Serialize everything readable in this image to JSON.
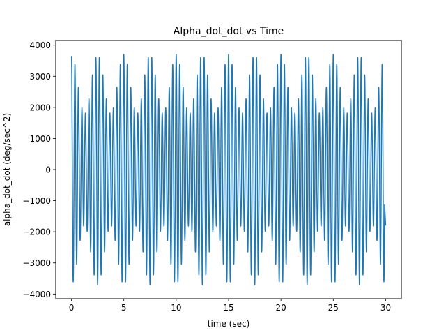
{
  "chart_data": {
    "type": "line",
    "title": "Alpha_dot_dot vs Time",
    "xlabel": "time (sec)",
    "ylabel": "alpha_dot_dot (deg/sec^2)",
    "xlim": [
      -1.5,
      31.5
    ],
    "ylim": [
      -4150,
      4150
    ],
    "xticks": [
      0,
      5,
      10,
      15,
      20,
      25,
      30
    ],
    "xtick_labels": [
      "0",
      "5",
      "10",
      "15",
      "20",
      "25",
      "30"
    ],
    "yticks": [
      -4000,
      -3000,
      -2000,
      -1000,
      0,
      1000,
      2000,
      3000,
      4000
    ],
    "ytick_labels": [
      "−4000",
      "−3000",
      "−2000",
      "−1000",
      "0",
      "1000",
      "2000",
      "3000",
      "4000"
    ],
    "grid": false,
    "legend": false,
    "series": [
      {
        "color": "#1f77b4",
        "x_range": [
          0,
          30
        ],
        "oscillation": {
          "carrier_frequency_hz": 3.0,
          "beat_frequency_hz": 0.4,
          "peak_amplitude": 3700,
          "min_amplitude": 1800,
          "start_value": 3600,
          "end_value": -1800
        }
      }
    ]
  }
}
